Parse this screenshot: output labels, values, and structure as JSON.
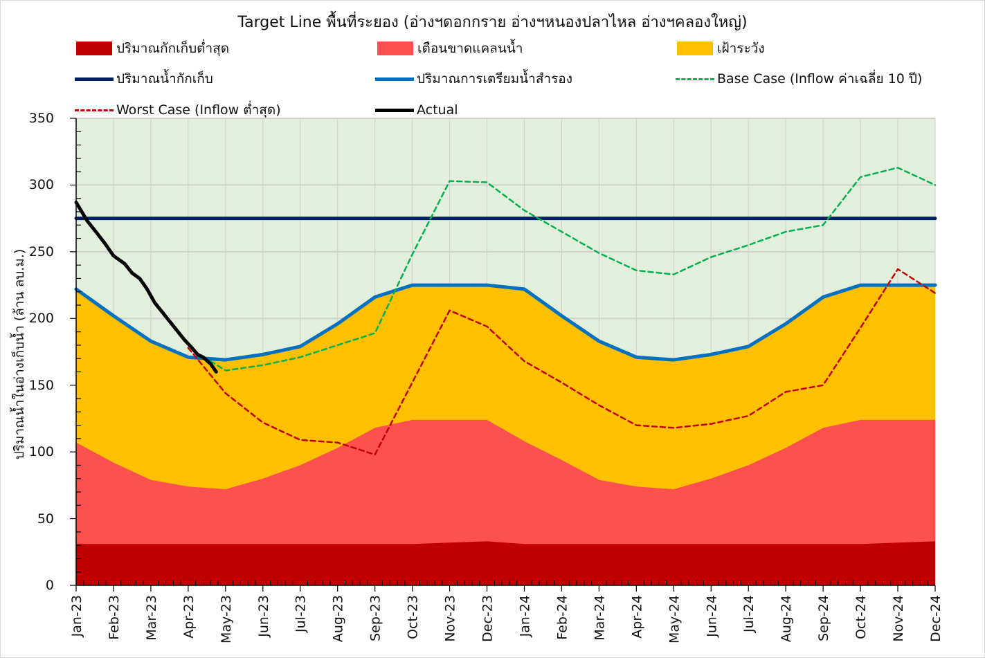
{
  "chart_data": {
    "type": "area",
    "title": "Target Line พื้นที่ระยอง (อ่างฯดอกกราย อ่างฯหนองปลาไหล อ่างฯคลองใหญ่)",
    "ylabel": "ปริมาณน้ำในอ่างเก็บน้ำ (ล้าน ลบ.ม.)",
    "xlabel": "",
    "ylim": [
      0,
      350
    ],
    "yticks": [
      0,
      50,
      100,
      150,
      200,
      250,
      300,
      350
    ],
    "categories": [
      "Jan-23",
      "Feb-23",
      "Mar-23",
      "Apr-23",
      "May-23",
      "Jun-23",
      "Jul-23",
      "Aug-23",
      "Sep-23",
      "Oct-23",
      "Nov-23",
      "Dec-23",
      "Jan-24",
      "Feb-24",
      "Mar-24",
      "Apr-24",
      "May-24",
      "Jun-24",
      "Jul-24",
      "Aug-24",
      "Sep-24",
      "Oct-24",
      "Nov-24",
      "Dec-24"
    ],
    "grid": true,
    "plot_background": "#e2efda",
    "legend_position": "top",
    "series": [
      {
        "name": "ปริมาณกักเก็บต่ำสุด",
        "kind": "area",
        "color": "#c00000",
        "values": [
          31,
          31,
          31,
          31,
          31,
          31,
          31,
          31,
          31,
          31,
          32,
          33,
          31,
          31,
          31,
          31,
          31,
          31,
          31,
          31,
          31,
          31,
          32,
          33
        ]
      },
      {
        "name": "เตือนขาดแคลนน้ำ",
        "kind": "area",
        "color": "#ff5050",
        "values": [
          107,
          92,
          79,
          74,
          72,
          80,
          90,
          103,
          118,
          124,
          124,
          124,
          108,
          94,
          79,
          74,
          72,
          80,
          90,
          103,
          118,
          124,
          124,
          124
        ]
      },
      {
        "name": "เฝ้าระวัง",
        "kind": "area",
        "color": "#ffc000",
        "values": [
          222,
          202,
          183,
          171,
          169,
          173,
          179,
          196,
          216,
          225,
          225,
          225,
          222,
          202,
          183,
          171,
          169,
          173,
          179,
          196,
          216,
          225,
          225,
          225
        ]
      },
      {
        "name": "ปริมาณน้ำกักเก็บ",
        "kind": "line",
        "color": "#002060",
        "dash": "solid",
        "values": [
          275,
          275,
          275,
          275,
          275,
          275,
          275,
          275,
          275,
          275,
          275,
          275,
          275,
          275,
          275,
          275,
          275,
          275,
          275,
          275,
          275,
          275,
          275,
          275
        ]
      },
      {
        "name": "ปริมาณการเตรียมน้ำสำรอง",
        "kind": "line",
        "color": "#0070c0",
        "dash": "solid",
        "values": [
          222,
          202,
          183,
          171,
          169,
          173,
          179,
          196,
          216,
          225,
          225,
          225,
          222,
          202,
          183,
          171,
          169,
          173,
          179,
          196,
          216,
          225,
          225,
          225
        ]
      },
      {
        "name": "Base Case (Inflow ค่าเฉลี่ย 10 ปี)",
        "kind": "line",
        "color": "#00b050",
        "dash": "dashed",
        "x": [
          3.6,
          4,
          5,
          6,
          7,
          8,
          9,
          10,
          11,
          12,
          13,
          14,
          15,
          16,
          17,
          18,
          19,
          20,
          21,
          22,
          23
        ],
        "values": [
          168,
          161,
          165,
          171,
          180,
          189,
          248,
          303,
          302,
          281,
          265,
          249,
          236,
          233,
          246,
          255,
          265,
          270,
          306,
          313,
          300
        ]
      },
      {
        "name": "Worst Case (Inflow ต่ำสุด)",
        "kind": "line",
        "color": "#c00000",
        "dash": "dashed",
        "x": [
          3,
          4,
          5,
          6,
          7,
          8,
          9,
          10,
          11,
          12,
          13,
          14,
          15,
          16,
          17,
          18,
          19,
          20,
          21,
          22,
          23
        ],
        "values": [
          178,
          144,
          122,
          109,
          107,
          98,
          152,
          206,
          194,
          168,
          152,
          135,
          120,
          118,
          121,
          127,
          145,
          150,
          193,
          237,
          219
        ]
      },
      {
        "name": "Actual",
        "kind": "line",
        "color": "#000000",
        "dash": "solid",
        "x": [
          0,
          0.15,
          0.3,
          0.5,
          0.75,
          1.0,
          1.3,
          1.5,
          1.7,
          1.9,
          2.1,
          2.3,
          2.5,
          2.7,
          2.9,
          3.1,
          3.25,
          3.4,
          3.6,
          3.75
        ],
        "values": [
          287,
          280,
          273,
          266,
          257,
          247,
          241,
          234,
          230,
          222,
          212,
          205,
          198,
          191,
          184,
          178,
          173,
          171,
          166,
          160
        ]
      }
    ]
  }
}
